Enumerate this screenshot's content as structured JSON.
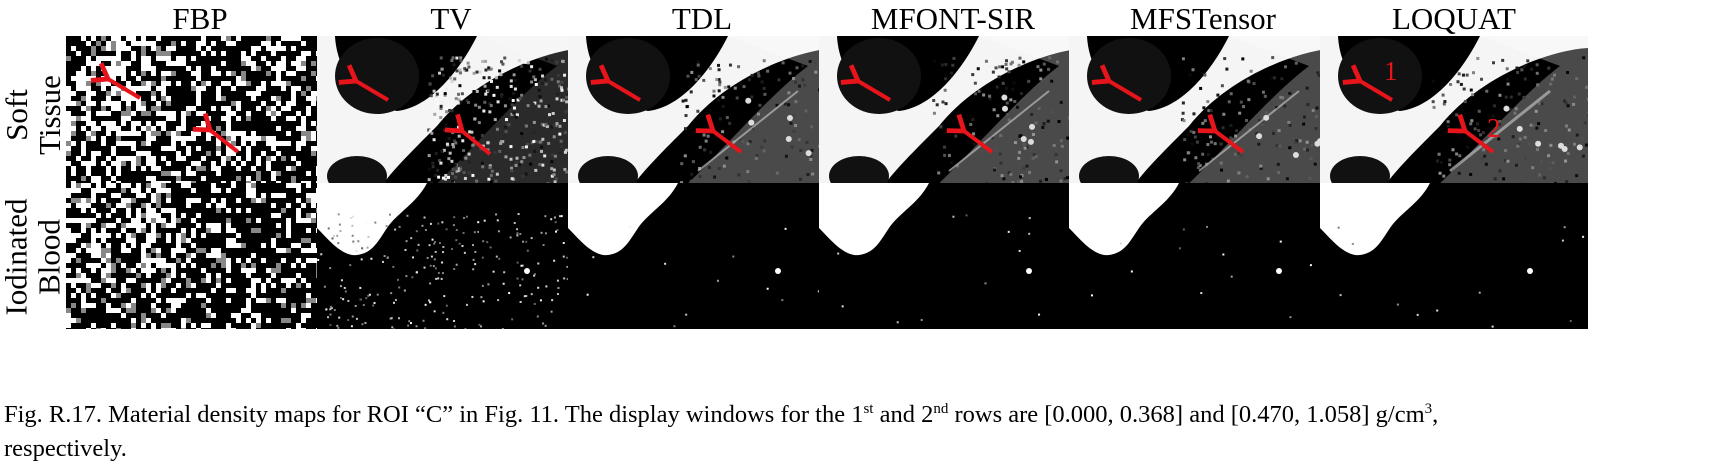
{
  "columns": [
    "FBP",
    "TV",
    "TDL",
    "MFONT-SIR",
    "MFSTensor",
    "LOQUAT"
  ],
  "rows": [
    {
      "line1": "Soft",
      "line2": "Tissue"
    },
    {
      "line1": "Iodinated",
      "line2": "Blood"
    }
  ],
  "annotations": {
    "arrow_1_label": "1",
    "arrow_2_label": "2",
    "arrow_color": "#e8141b"
  },
  "caption": {
    "prefix": "Fig. R.17. Material density maps for ROI “C” in Fig. 11. The display windows for the 1",
    "sup1": "st",
    "mid": " and 2",
    "sup2": "nd",
    "rest": " rows are [0.000, 0.368] and [0.470, 1.058] g/cm",
    "sup3": "3",
    "end": ",",
    "line2": "respectively."
  }
}
